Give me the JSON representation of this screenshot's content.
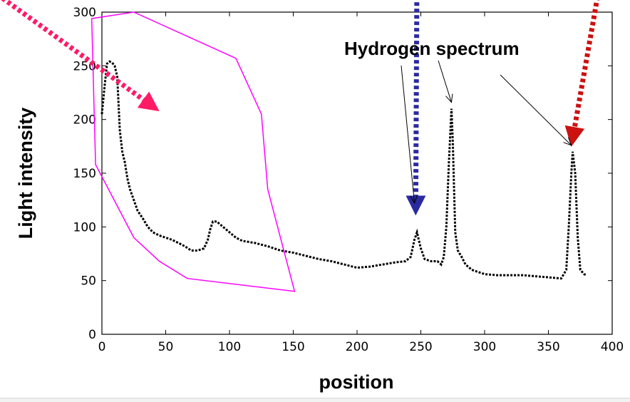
{
  "chart_data": {
    "type": "line",
    "xlabel": "position",
    "ylabel": "Light intensity",
    "xlim": [
      0,
      400
    ],
    "ylim": [
      0,
      300
    ],
    "xticks": [
      0,
      50,
      100,
      150,
      200,
      250,
      300,
      350,
      400
    ],
    "yticks": [
      0,
      50,
      100,
      150,
      200,
      250,
      300
    ],
    "grid": false,
    "series": [
      {
        "color": "#000000",
        "style": "dotted",
        "x": [
          0,
          2,
          4,
          6,
          8,
          10,
          12,
          14,
          16,
          18,
          20,
          22,
          25,
          28,
          32,
          36,
          40,
          45,
          50,
          55,
          60,
          65,
          70,
          75,
          80,
          83,
          85,
          87,
          90,
          95,
          100,
          105,
          110,
          115,
          120,
          130,
          140,
          150,
          160,
          170,
          180,
          190,
          200,
          210,
          220,
          230,
          238,
          242,
          245,
          247,
          250,
          253,
          258,
          263,
          266,
          268,
          270,
          272,
          274,
          275,
          277,
          279,
          282,
          285,
          290,
          300,
          310,
          320,
          330,
          340,
          350,
          360,
          364,
          366,
          368,
          369,
          371,
          373,
          375,
          378,
          380
        ],
        "y": [
          205,
          230,
          252,
          254,
          253,
          250,
          240,
          190,
          170,
          160,
          145,
          135,
          125,
          115,
          108,
          100,
          95,
          92,
          90,
          88,
          85,
          82,
          78,
          78,
          80,
          88,
          98,
          105,
          105,
          100,
          95,
          90,
          87,
          86,
          85,
          82,
          78,
          76,
          73,
          70,
          68,
          65,
          62,
          63,
          65,
          67,
          68,
          72,
          88,
          95,
          80,
          70,
          68,
          68,
          65,
          72,
          100,
          160,
          210,
          180,
          95,
          78,
          72,
          65,
          60,
          56,
          55,
          55,
          55,
          54,
          53,
          52,
          60,
          100,
          150,
          170,
          150,
          90,
          60,
          56,
          55
        ]
      }
    ],
    "annotations": [
      {
        "text": "Hydrogen spectrum",
        "points_to": [
          [
            245,
            118
          ],
          [
            274,
            212
          ],
          [
            368,
            172
          ]
        ]
      }
    ],
    "overlays": [
      {
        "type": "polygon",
        "color": "#ff00ff",
        "points": [
          [
            -8,
            294
          ],
          [
            25,
            300
          ],
          [
            105,
            257
          ],
          [
            125,
            205
          ],
          [
            130,
            135
          ],
          [
            151,
            40
          ],
          [
            67,
            52
          ],
          [
            45,
            68
          ],
          [
            25,
            90
          ],
          [
            -5,
            158
          ]
        ]
      },
      {
        "type": "dotted-arrow",
        "color": "#ff1a66",
        "from": [
          -78,
          313
        ],
        "to": [
          40,
          212
        ]
      },
      {
        "type": "dotted-arrow",
        "color": "#2a2aa0",
        "from": [
          247,
          345
        ],
        "to": [
          246,
          118
        ]
      },
      {
        "type": "dotted-arrow",
        "color": "#cc1111",
        "from": [
          392,
          338
        ],
        "to": [
          369,
          182
        ]
      }
    ]
  }
}
